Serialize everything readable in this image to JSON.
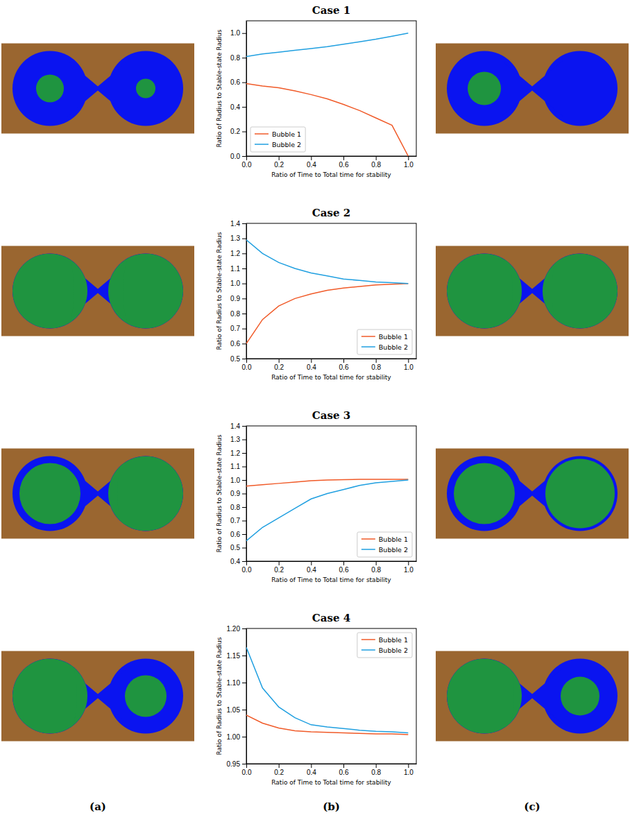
{
  "column_labels": [
    "(a)",
    "(b)",
    "(c)"
  ],
  "chart_data": [
    {
      "type": "line",
      "title": "Case 1",
      "x_label": "Ratio of Time to Total time for stability",
      "y_label": "Ratio of Radius to Stable-state Radius",
      "x": [
        0,
        0.1,
        0.2,
        0.3,
        0.4,
        0.5,
        0.6,
        0.7,
        0.8,
        0.9,
        1.0
      ],
      "series": [
        {
          "name": "Bubble 1",
          "color": "#f05a28",
          "values": [
            0.59,
            0.57,
            0.555,
            0.53,
            0.5,
            0.465,
            0.42,
            0.37,
            0.31,
            0.25,
            0
          ]
        },
        {
          "name": "Bubble 2",
          "color": "#1f9fe0",
          "values": [
            0.81,
            0.83,
            0.845,
            0.86,
            0.875,
            0.89,
            0.91,
            0.93,
            0.95,
            0.975,
            1.0
          ]
        }
      ],
      "xlim": [
        0,
        1.05
      ],
      "xticks": [
        {
          "value": 0,
          "label": "0.0"
        },
        {
          "value": 0.2,
          "label": "0.2"
        },
        {
          "value": 0.4,
          "label": "0.4"
        },
        {
          "value": 0.6,
          "label": "0.6"
        },
        {
          "value": 0.8,
          "label": "0.8"
        },
        {
          "value": 1,
          "label": "1.0"
        }
      ],
      "ylim": [
        0,
        1.1
      ],
      "yticks": [
        {
          "value": 0,
          "label": "0.0"
        },
        {
          "value": 0.2,
          "label": "0.2"
        },
        {
          "value": 0.4,
          "label": "0.4"
        },
        {
          "value": 0.6,
          "label": "0.6"
        },
        {
          "value": 0.8,
          "label": "0.8"
        },
        {
          "value": 1,
          "label": "1.0"
        }
      ],
      "legend": "lower left"
    },
    {
      "type": "line",
      "title": "Case 2",
      "x_label": "Ratio of Time to Total time for stability",
      "y_label": "Ratio of Radius to Stable-state Radius",
      "x": [
        0,
        0.1,
        0.2,
        0.3,
        0.4,
        0.5,
        0.6,
        0.7,
        0.8,
        0.9,
        1.0
      ],
      "series": [
        {
          "name": "Bubble 1",
          "color": "#f05a28",
          "values": [
            0.6,
            0.76,
            0.85,
            0.9,
            0.93,
            0.955,
            0.97,
            0.98,
            0.99,
            0.995,
            1.0
          ]
        },
        {
          "name": "Bubble 2",
          "color": "#1f9fe0",
          "values": [
            1.29,
            1.2,
            1.14,
            1.1,
            1.07,
            1.05,
            1.03,
            1.02,
            1.01,
            1.005,
            1.0
          ]
        }
      ],
      "xlim": [
        0,
        1.05
      ],
      "xticks": [
        {
          "value": 0,
          "label": "0.0"
        },
        {
          "value": 0.2,
          "label": "0.2"
        },
        {
          "value": 0.4,
          "label": "0.4"
        },
        {
          "value": 0.6,
          "label": "0.6"
        },
        {
          "value": 0.8,
          "label": "0.8"
        },
        {
          "value": 1,
          "label": "1.0"
        }
      ],
      "ylim": [
        0.5,
        1.4
      ],
      "yticks": [
        0.5,
        0.6,
        0.7,
        0.8,
        0.9,
        {
          "value": 1,
          "label": "1.0"
        },
        1.1,
        1.2,
        1.3,
        1.4
      ],
      "legend": "lower right"
    },
    {
      "type": "line",
      "title": "Case 3",
      "x_label": "Ratio of Time to Total time for stability",
      "y_label": "Ratio of Radius to Stable-state Radius",
      "x": [
        0,
        0.1,
        0.2,
        0.3,
        0.4,
        0.5,
        0.6,
        0.7,
        0.8,
        0.9,
        1.0
      ],
      "series": [
        {
          "name": "Bubble 1",
          "color": "#f05a28",
          "values": [
            0.955,
            0.965,
            0.975,
            0.985,
            0.995,
            1.0,
            1.003,
            1.005,
            1.005,
            1.005,
            1.005
          ]
        },
        {
          "name": "Bubble 2",
          "color": "#1f9fe0",
          "values": [
            0.55,
            0.65,
            0.72,
            0.79,
            0.86,
            0.9,
            0.93,
            0.96,
            0.98,
            0.99,
            1.0
          ]
        }
      ],
      "xlim": [
        0,
        1.05
      ],
      "xticks": [
        {
          "value": 0,
          "label": "0.0"
        },
        {
          "value": 0.2,
          "label": "0.2"
        },
        {
          "value": 0.4,
          "label": "0.4"
        },
        {
          "value": 0.6,
          "label": "0.6"
        },
        {
          "value": 0.8,
          "label": "0.8"
        },
        {
          "value": 1,
          "label": "1.0"
        }
      ],
      "ylim": [
        0.4,
        1.4
      ],
      "yticks": [
        0.4,
        0.5,
        0.6,
        0.7,
        0.8,
        0.9,
        {
          "value": 1,
          "label": "1.0"
        },
        1.1,
        1.2,
        1.3,
        1.4
      ],
      "legend": "lower right"
    },
    {
      "type": "line",
      "title": "Case 4",
      "x_label": "Ratio of Time to Total time for stability",
      "y_label": "Ratio of Radius to Stable-state Radius",
      "x": [
        0,
        0.1,
        0.2,
        0.3,
        0.4,
        0.5,
        0.6,
        0.7,
        0.8,
        0.9,
        1.0
      ],
      "series": [
        {
          "name": "Bubble 1",
          "color": "#f05a28",
          "values": [
            1.04,
            1.025,
            1.016,
            1.011,
            1.009,
            1.008,
            1.007,
            1.006,
            1.005,
            1.005,
            1.004
          ]
        },
        {
          "name": "Bubble 2",
          "color": "#1f9fe0",
          "values": [
            1.165,
            1.09,
            1.055,
            1.035,
            1.022,
            1.018,
            1.015,
            1.012,
            1.01,
            1.009,
            1.007
          ]
        }
      ],
      "xlim": [
        0,
        1.05
      ],
      "xticks": [
        {
          "value": 0,
          "label": "0.0"
        },
        {
          "value": 0.2,
          "label": "0.2"
        },
        {
          "value": 0.4,
          "label": "0.4"
        },
        {
          "value": 0.6,
          "label": "0.6"
        },
        {
          "value": 0.8,
          "label": "0.8"
        },
        {
          "value": 1,
          "label": "1.0"
        }
      ],
      "ylim": [
        0.95,
        1.2
      ],
      "yticks": [
        0.95,
        {
          "value": 1,
          "label": "1.00"
        },
        1.05,
        {
          "value": 1.1,
          "label": "1.10"
        },
        1.15,
        {
          "value": 1.2,
          "label": "1.20"
        }
      ],
      "legend": "upper right"
    }
  ]
}
